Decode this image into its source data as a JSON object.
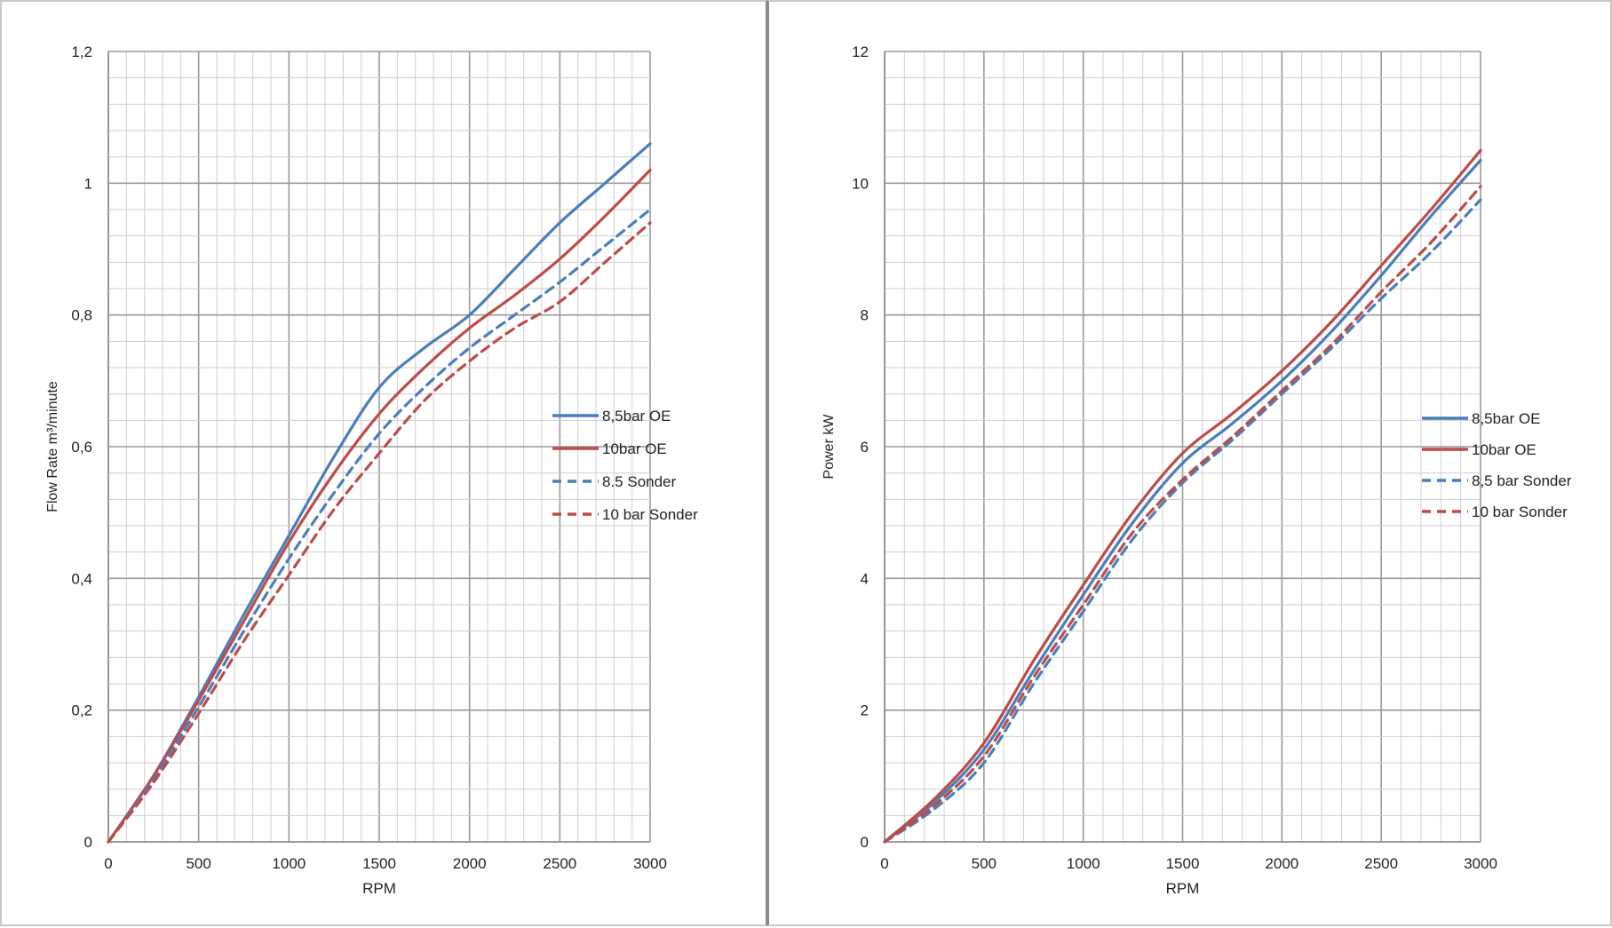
{
  "chart_data": [
    {
      "type": "line",
      "xlabel": "RPM",
      "ylabel": "Flow Rate m³/minute",
      "xlim": [
        0,
        3000
      ],
      "ylim": [
        0,
        1.2
      ],
      "x_ticks": [
        0,
        500,
        1000,
        1500,
        2000,
        2500,
        3000
      ],
      "x_tick_labels": [
        "0",
        "500",
        "1000",
        "1500",
        "2000",
        "2500",
        "3000"
      ],
      "y_ticks": [
        0,
        0.2,
        0.4,
        0.6,
        0.8,
        1,
        1.2
      ],
      "y_tick_labels": [
        "0",
        "0,2",
        "0,4",
        "0,6",
        "0,8",
        "1",
        "1,2"
      ],
      "grid": true,
      "legend_position": "right",
      "x": [
        0,
        250,
        500,
        750,
        1000,
        1250,
        1500,
        1750,
        2000,
        2250,
        2500,
        2750,
        3000
      ],
      "series": [
        {
          "name": "8,5bar OE",
          "color": "#4a7ebb",
          "dashed": false,
          "values": [
            0,
            0.1,
            0.22,
            0.345,
            0.465,
            0.585,
            0.69,
            0.75,
            0.8,
            0.87,
            0.94,
            1.0,
            1.06
          ]
        },
        {
          "name": "10bar OE",
          "color": "#be4b48",
          "dashed": false,
          "values": [
            0,
            0.1,
            0.215,
            0.335,
            0.455,
            0.56,
            0.65,
            0.72,
            0.78,
            0.83,
            0.885,
            0.95,
            1.02
          ]
        },
        {
          "name": "8.5 Sonder",
          "color": "#4a7ebb",
          "dashed": true,
          "values": [
            0,
            0.095,
            0.205,
            0.32,
            0.43,
            0.53,
            0.62,
            0.69,
            0.75,
            0.8,
            0.85,
            0.905,
            0.96
          ]
        },
        {
          "name": "10 bar Sonder",
          "color": "#be4b48",
          "dashed": true,
          "values": [
            0,
            0.09,
            0.195,
            0.305,
            0.405,
            0.505,
            0.59,
            0.67,
            0.73,
            0.78,
            0.82,
            0.88,
            0.94
          ]
        }
      ]
    },
    {
      "type": "line",
      "xlabel": "RPM",
      "ylabel": "Power kW",
      "xlim": [
        0,
        3000
      ],
      "ylim": [
        0,
        12
      ],
      "x_ticks": [
        0,
        500,
        1000,
        1500,
        2000,
        2500,
        3000
      ],
      "x_tick_labels": [
        "0",
        "500",
        "1000",
        "1500",
        "2000",
        "2500",
        "3000"
      ],
      "y_ticks": [
        0,
        2,
        4,
        6,
        8,
        10,
        12
      ],
      "y_tick_labels": [
        "0",
        "2",
        "4",
        "6",
        "8",
        "10",
        "12"
      ],
      "grid": true,
      "legend_position": "right",
      "x": [
        0,
        250,
        500,
        750,
        1000,
        1250,
        1500,
        1750,
        2000,
        2250,
        2500,
        2750,
        3000
      ],
      "series": [
        {
          "name": "8,5bar OE",
          "color": "#4a7ebb",
          "dashed": false,
          "values": [
            0,
            0.6,
            1.4,
            2.6,
            3.75,
            4.85,
            5.75,
            6.35,
            7.0,
            7.75,
            8.6,
            9.5,
            10.35
          ]
        },
        {
          "name": "10bar OE",
          "color": "#be4b48",
          "dashed": false,
          "values": [
            0,
            0.65,
            1.5,
            2.75,
            3.9,
            5.0,
            5.9,
            6.5,
            7.15,
            7.9,
            8.75,
            9.6,
            10.5
          ]
        },
        {
          "name": "8,5 bar Sonder",
          "color": "#4a7ebb",
          "dashed": true,
          "values": [
            0,
            0.5,
            1.2,
            2.4,
            3.5,
            4.6,
            5.45,
            6.1,
            6.8,
            7.5,
            8.25,
            8.95,
            9.75
          ]
        },
        {
          "name": "10 bar Sonder",
          "color": "#be4b48",
          "dashed": true,
          "values": [
            0,
            0.55,
            1.3,
            2.5,
            3.6,
            4.7,
            5.5,
            6.15,
            6.85,
            7.55,
            8.35,
            9.1,
            9.95
          ]
        }
      ]
    }
  ]
}
